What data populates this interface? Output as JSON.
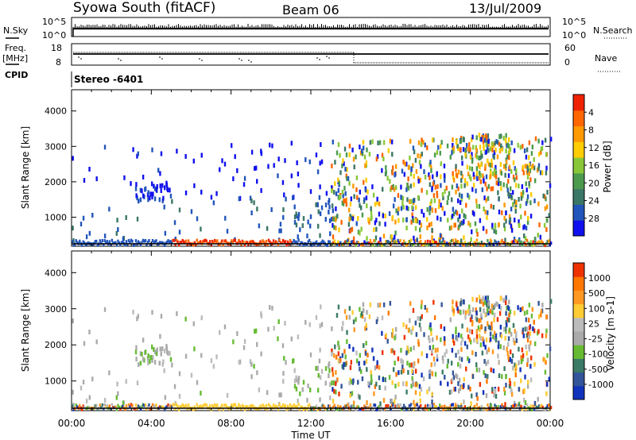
{
  "header": {
    "title": "Syowa South (fitACF)",
    "beam": "Beam 06",
    "date": "13/Jul/2009"
  },
  "noise_panel": {
    "left_label": "N.Sky",
    "right_label": "N.Search",
    "tick_high": "10^5",
    "tick_low": "10^0"
  },
  "freq_panel": {
    "left_label": "Freq.",
    "left_unit": "[MHz]",
    "left_ticks": [
      "18",
      "8"
    ],
    "right_label": "Nave",
    "right_ticks": [
      "60",
      "0"
    ]
  },
  "cpid": {
    "label": "CPID",
    "value": "Stereo  -6401"
  },
  "x_axis": {
    "label": "Time UT",
    "ticks": [
      "00:00",
      "04:00",
      "08:00",
      "12:00",
      "16:00",
      "20:00",
      "00:00"
    ]
  },
  "chart_data": [
    {
      "type": "heatmap",
      "title": "",
      "xlabel": "",
      "ylabel": "Slant Range [km]",
      "yticks": [
        "1000",
        "2000",
        "3000",
        "4000"
      ],
      "ylim": [
        180,
        4600
      ],
      "xlim": [
        0,
        24
      ],
      "colorbar": {
        "label": "Power [dB]",
        "ticks": [
          "4",
          "8",
          "12",
          "16",
          "20",
          "24",
          "28"
        ],
        "colors": [
          "#1010ee",
          "#2255bb",
          "#3b7766",
          "#4b9a4d",
          "#88c838",
          "#ffcc00",
          "#ff9900",
          "#ff6600",
          "#ee2200"
        ]
      }
    },
    {
      "type": "heatmap",
      "title": "",
      "xlabel": "Time UT",
      "ylabel": "Slant Range [km]",
      "yticks": [
        "1000",
        "2000",
        "3000",
        "4000"
      ],
      "ylim": [
        180,
        4600
      ],
      "xlim": [
        0,
        24
      ],
      "colorbar": {
        "label": "Velocity [m s-1]",
        "ticks": [
          "1000",
          "500",
          "100",
          "25",
          "-25",
          "-100",
          "-500",
          "-1000"
        ],
        "colors": [
          "#1133bb",
          "#335599",
          "#3a7a66",
          "#66bb33",
          "#aaaaaa",
          "#bbbbbb",
          "#ffcc33",
          "#ff9922",
          "#ff7700",
          "#ee3300"
        ]
      }
    }
  ]
}
